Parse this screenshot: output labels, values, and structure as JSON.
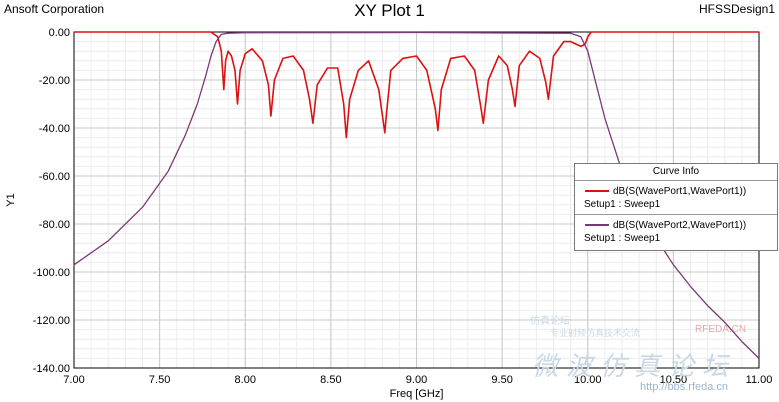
{
  "header": {
    "company": "Ansoft Corporation",
    "title": "XY Plot 1",
    "design": "HFSSDesign1"
  },
  "legend": {
    "title": "Curve Info",
    "entries": [
      {
        "name": "dB(S(WavePort1,WavePort1))",
        "setup": "Setup1 : Sweep1",
        "color": "#dd1111"
      },
      {
        "name": "dB(S(WavePort2,WavePort1))",
        "setup": "Setup1 : Sweep1",
        "color": "#7a3a78"
      }
    ]
  },
  "watermark": {
    "small1": "仿真论坛",
    "small2": "专业射频仿真技术交流",
    "big": "微波仿真论坛",
    "brand": "RFEDA.CN",
    "site": "http://bbs.rfeda.cn"
  },
  "chart_data": {
    "type": "line",
    "title": "XY Plot 1",
    "xlabel": "Freq [GHz]",
    "ylabel": "Y1",
    "xlim": [
      7.0,
      11.0
    ],
    "ylim": [
      -140,
      0
    ],
    "x_ticks": [
      7.0,
      7.5,
      8.0,
      8.5,
      9.0,
      9.5,
      10.0,
      10.5,
      11.0
    ],
    "x_tick_labels": [
      "7.00",
      "7.50",
      "8.00",
      "8.50",
      "9.00",
      "9.50",
      "10.00",
      "10.50",
      "11.00"
    ],
    "y_ticks": [
      0,
      -20,
      -40,
      -60,
      -80,
      -100,
      -120,
      -140
    ],
    "y_tick_labels": [
      "0.00",
      "-20.00",
      "-40.00",
      "-60.00",
      "-80.00",
      "-100.00",
      "-120.00",
      "-140.00"
    ],
    "grid": true,
    "legend_position": "right",
    "series": [
      {
        "name": "dB(S(WavePort1,WavePort1))",
        "color": "#dd1111",
        "x": [
          7.0,
          7.5,
          7.8,
          7.84,
          7.86,
          7.875,
          7.885,
          7.9,
          7.92,
          7.94,
          7.955,
          7.97,
          8.0,
          8.04,
          8.1,
          8.135,
          8.15,
          8.17,
          8.22,
          8.28,
          8.34,
          8.375,
          8.395,
          8.42,
          8.48,
          8.54,
          8.575,
          8.59,
          8.61,
          8.66,
          8.72,
          8.78,
          8.815,
          8.825,
          8.85,
          8.92,
          9.0,
          9.06,
          9.11,
          9.125,
          9.145,
          9.2,
          9.28,
          9.34,
          9.375,
          9.39,
          9.42,
          9.48,
          9.53,
          9.56,
          9.575,
          9.6,
          9.66,
          9.72,
          9.755,
          9.77,
          9.8,
          9.86,
          9.9,
          9.93,
          9.96,
          9.985,
          10.0,
          10.02,
          10.1,
          10.5,
          11.0
        ],
        "y": [
          0,
          0,
          0,
          -2,
          -8,
          -24,
          -12,
          -8,
          -10,
          -16,
          -30,
          -16,
          -9,
          -7,
          -12,
          -22,
          -35,
          -20,
          -11,
          -10,
          -16,
          -28,
          -38,
          -22,
          -15,
          -15,
          -30,
          -44,
          -28,
          -16,
          -12,
          -24,
          -42,
          -34,
          -16,
          -11,
          -10,
          -16,
          -32,
          -41,
          -24,
          -11,
          -10,
          -16,
          -31,
          -38,
          -20,
          -10,
          -14,
          -24,
          -31,
          -14,
          -8,
          -11,
          -21,
          -28,
          -10,
          -4,
          -4,
          -5,
          -6,
          -5,
          -2,
          0,
          0,
          0,
          0
        ]
      },
      {
        "name": "dB(S(WavePort2,WavePort1))",
        "color": "#7a3a78",
        "x": [
          7.0,
          7.2,
          7.4,
          7.55,
          7.65,
          7.72,
          7.77,
          7.8,
          7.83,
          7.86,
          7.9,
          8.0,
          9.0,
          9.9,
          9.96,
          10.0,
          10.05,
          10.1,
          10.2,
          10.3,
          10.4,
          10.5,
          10.6,
          10.7,
          10.8,
          10.9,
          11.0
        ],
        "y": [
          -97,
          -87,
          -73,
          -58,
          -43,
          -30,
          -18,
          -10,
          -4,
          -1,
          -0.5,
          -0.3,
          -0.2,
          -0.5,
          -2,
          -8,
          -22,
          -36,
          -58,
          -74,
          -86,
          -97,
          -106,
          -114,
          -121,
          -129,
          -136
        ]
      }
    ]
  }
}
